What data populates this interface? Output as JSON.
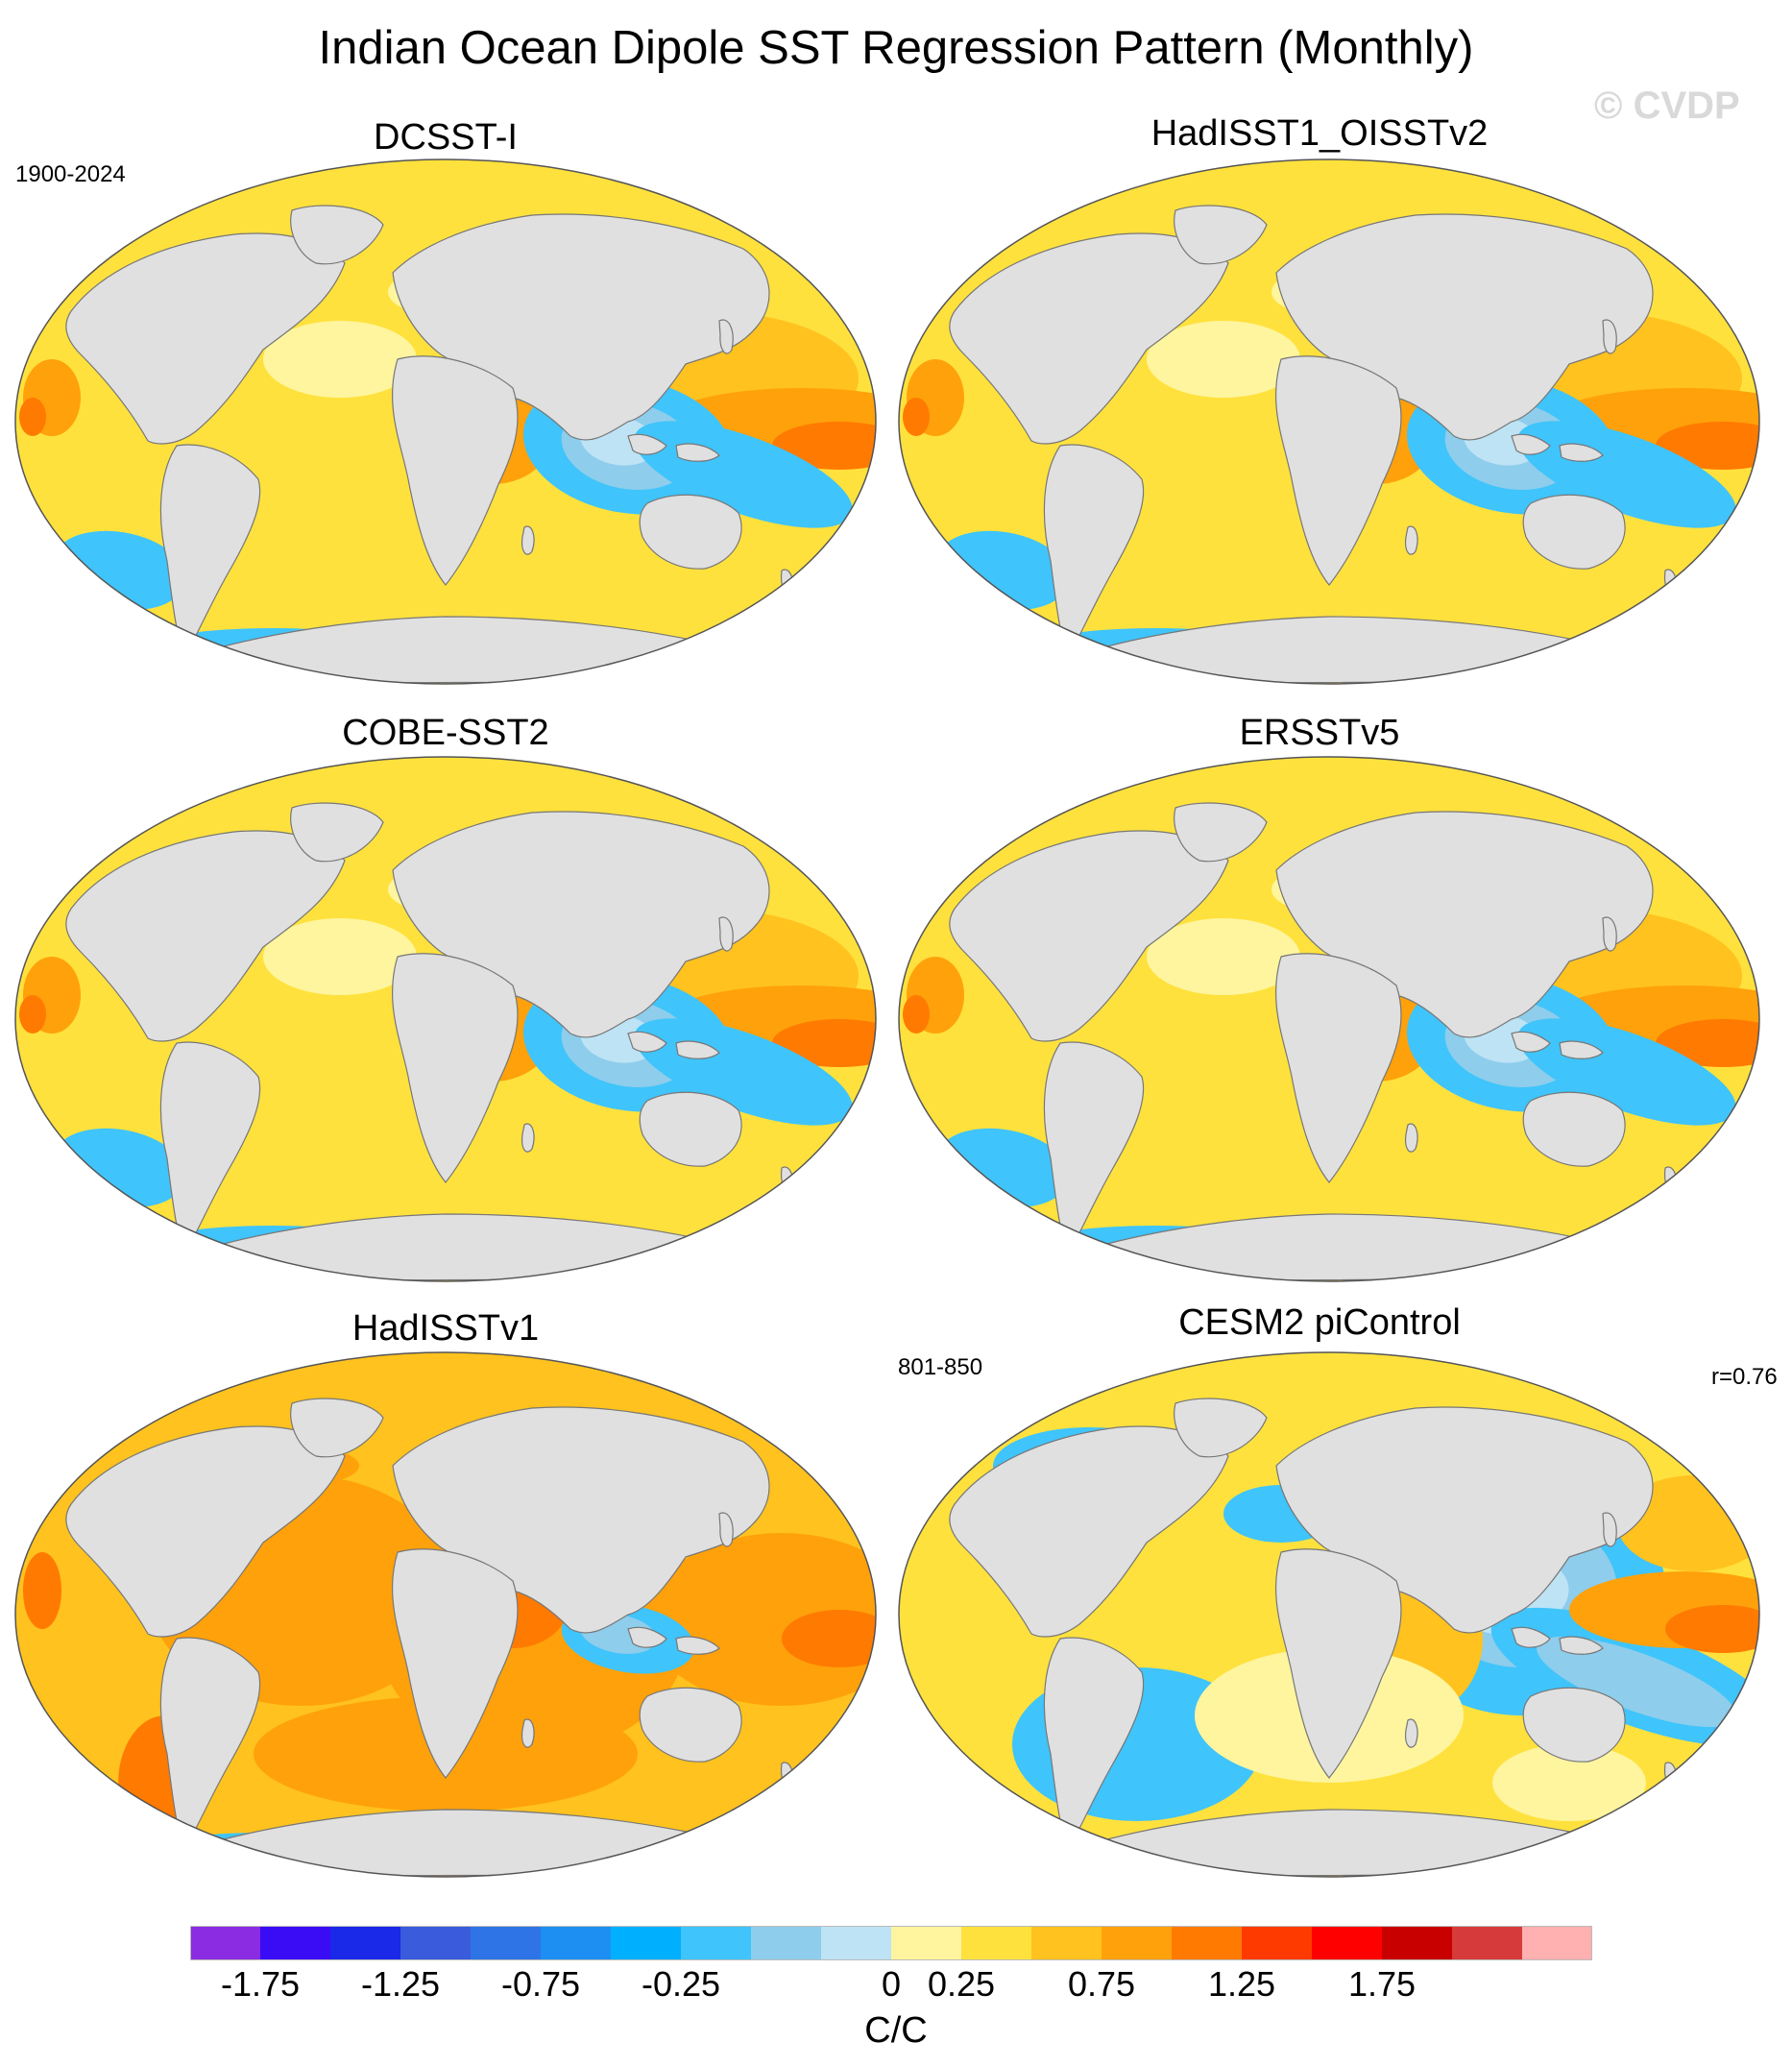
{
  "figure": {
    "title": "Indian Ocean Dipole SST Regression Pattern (Monthly)",
    "watermark": "© CVDP",
    "left_period": "1900-2024",
    "model_period": "801-850",
    "correlation": "r=0.76",
    "units": "C/C"
  },
  "panels": [
    {
      "id": "dcsst",
      "title": "DCSST-I",
      "style": "moderate"
    },
    {
      "id": "hadisst1_oisst",
      "title": "HadISST1_OISSTv2",
      "style": "moderate"
    },
    {
      "id": "cobe",
      "title": "COBE-SST2",
      "style": "moderate"
    },
    {
      "id": "ersst",
      "title": "ERSSTv5",
      "style": "moderate"
    },
    {
      "id": "hadisstv1",
      "title": "HadISSTv1",
      "style": "warm"
    },
    {
      "id": "cesm2",
      "title": "CESM2 piControl",
      "style": "model"
    }
  ],
  "colorbar": {
    "colors": [
      "#8b2be2",
      "#3a0cf5",
      "#1a28e8",
      "#3a5bdc",
      "#2f74e6",
      "#1e8ff2",
      "#00b0ff",
      "#3fc4fb",
      "#8ecdeb",
      "#bde3f5",
      "#fff59e",
      "#ffe13d",
      "#ffc21e",
      "#ffa10a",
      "#ff7a00",
      "#ff3a00",
      "#ff0000",
      "#c80000",
      "#d63a3a",
      "#ffb0b0"
    ],
    "labels": [
      "-1.75",
      "-1.25",
      "-0.75",
      "-0.25",
      "0",
      "0.25",
      "0.75",
      "1.25",
      "1.75"
    ],
    "label_boundary_index": [
      1,
      3,
      5,
      7,
      10,
      11,
      13,
      15,
      17
    ]
  },
  "colors": {
    "land": "#e0e0e0",
    "coast": "#777777"
  }
}
